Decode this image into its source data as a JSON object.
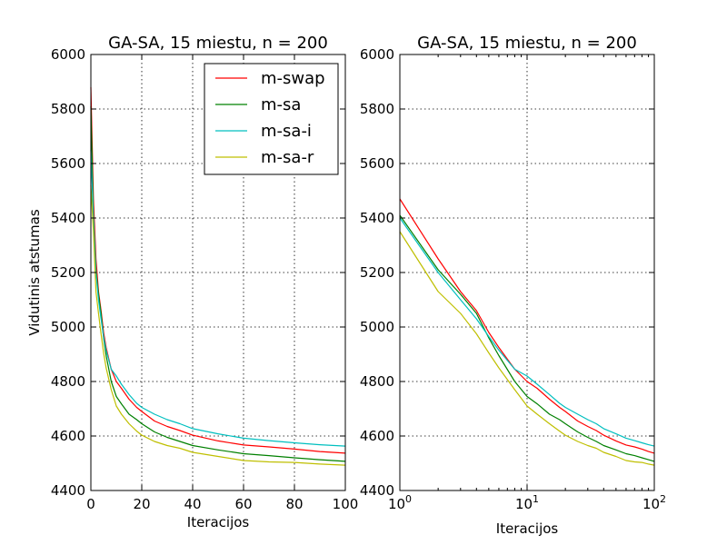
{
  "chart_data": [
    {
      "type": "line",
      "title": "GA-SA, 15 miestu, n = 200",
      "xlabel": "Iteracijos",
      "ylabel": "Vidutinis atstumas",
      "xscale": "linear",
      "xlim": [
        0,
        100
      ],
      "ylim": [
        4400,
        6000
      ],
      "xticks": [
        0,
        20,
        40,
        60,
        80,
        100
      ],
      "xtick_labels": [
        "0",
        "20",
        "40",
        "60",
        "80",
        "100"
      ],
      "yticks": [
        4400,
        4600,
        4800,
        5000,
        5200,
        5400,
        5600,
        5800,
        6000
      ],
      "ytick_labels": [
        "4400",
        "4600",
        "4800",
        "5000",
        "5200",
        "5400",
        "5600",
        "5800",
        "6000"
      ],
      "grid": true,
      "legend": "top-right",
      "series": [
        {
          "name": "m-swap",
          "color": "#ff0000",
          "x": [
            0,
            1,
            2,
            3,
            4,
            5,
            6,
            8,
            10,
            12,
            15,
            18,
            20,
            25,
            30,
            35,
            40,
            50,
            60,
            70,
            80,
            90,
            100
          ],
          "y": [
            5880,
            5470,
            5250,
            5130,
            5060,
            4980,
            4925,
            4845,
            4800,
            4775,
            4735,
            4705,
            4690,
            4655,
            4635,
            4620,
            4603,
            4582,
            4567,
            4560,
            4552,
            4543,
            4537
          ]
        },
        {
          "name": "m-sa",
          "color": "#008000",
          "x": [
            0,
            1,
            2,
            3,
            4,
            5,
            6,
            8,
            10,
            12,
            15,
            18,
            20,
            25,
            30,
            35,
            40,
            50,
            60,
            70,
            80,
            90,
            100
          ],
          "y": [
            5810,
            5410,
            5210,
            5120,
            5050,
            4960,
            4895,
            4800,
            4745,
            4718,
            4680,
            4660,
            4645,
            4615,
            4595,
            4580,
            4565,
            4549,
            4535,
            4528,
            4520,
            4513,
            4507
          ]
        },
        {
          "name": "m-sa-i",
          "color": "#00bfbf",
          "x": [
            0,
            1,
            2,
            3,
            4,
            5,
            6,
            8,
            10,
            12,
            15,
            18,
            20,
            25,
            30,
            35,
            40,
            50,
            60,
            70,
            80,
            90,
            100
          ],
          "y": [
            5650,
            5400,
            5200,
            5100,
            5030,
            4965,
            4915,
            4845,
            4820,
            4790,
            4752,
            4720,
            4705,
            4680,
            4660,
            4645,
            4627,
            4608,
            4592,
            4583,
            4575,
            4568,
            4563
          ]
        },
        {
          "name": "m-sa-r",
          "color": "#bfbf00",
          "x": [
            0,
            1,
            2,
            3,
            4,
            5,
            6,
            8,
            10,
            12,
            15,
            18,
            20,
            25,
            30,
            35,
            40,
            50,
            60,
            70,
            80,
            90,
            100
          ],
          "y": [
            5520,
            5350,
            5130,
            5050,
            4975,
            4905,
            4850,
            4770,
            4710,
            4680,
            4645,
            4618,
            4603,
            4580,
            4565,
            4555,
            4540,
            4525,
            4510,
            4505,
            4503,
            4497,
            4493
          ]
        }
      ]
    },
    {
      "type": "line",
      "title": "GA-SA, 15 miestu, n = 200",
      "xlabel": "Iteracijos",
      "ylabel": "",
      "xscale": "log",
      "xlim": [
        1,
        100
      ],
      "ylim": [
        4400,
        6000
      ],
      "xticks": [
        1,
        10,
        100
      ],
      "xtick_labels": [
        {
          "base": "10",
          "exp": "0"
        },
        {
          "base": "10",
          "exp": "1"
        },
        {
          "base": "10",
          "exp": "2"
        }
      ],
      "yticks": [
        4400,
        4600,
        4800,
        5000,
        5200,
        5400,
        5600,
        5800,
        6000
      ],
      "ytick_labels": [
        "4400",
        "4600",
        "4800",
        "5000",
        "5200",
        "5400",
        "5600",
        "5800",
        "6000"
      ],
      "grid": true,
      "legend": "none",
      "series": [
        {
          "name": "m-swap",
          "color": "#ff0000",
          "x": [
            1,
            2,
            3,
            4,
            5,
            6,
            8,
            10,
            12,
            15,
            18,
            20,
            25,
            30,
            35,
            40,
            50,
            60,
            70,
            80,
            90,
            100
          ],
          "y": [
            5470,
            5250,
            5130,
            5060,
            4980,
            4925,
            4845,
            4800,
            4775,
            4735,
            4705,
            4690,
            4655,
            4635,
            4620,
            4603,
            4582,
            4567,
            4560,
            4552,
            4543,
            4537
          ]
        },
        {
          "name": "m-sa",
          "color": "#008000",
          "x": [
            1,
            2,
            3,
            4,
            5,
            6,
            8,
            10,
            12,
            15,
            18,
            20,
            25,
            30,
            35,
            40,
            50,
            60,
            70,
            80,
            90,
            100
          ],
          "y": [
            5410,
            5210,
            5120,
            5050,
            4960,
            4895,
            4800,
            4745,
            4718,
            4680,
            4660,
            4645,
            4615,
            4595,
            4580,
            4565,
            4549,
            4535,
            4528,
            4520,
            4513,
            4507
          ]
        },
        {
          "name": "m-sa-i",
          "color": "#00bfbf",
          "x": [
            1,
            2,
            3,
            4,
            5,
            6,
            8,
            10,
            12,
            15,
            18,
            20,
            25,
            30,
            35,
            40,
            50,
            60,
            70,
            80,
            90,
            100
          ],
          "y": [
            5400,
            5200,
            5100,
            5030,
            4965,
            4915,
            4845,
            4820,
            4790,
            4752,
            4720,
            4705,
            4680,
            4660,
            4645,
            4627,
            4608,
            4592,
            4583,
            4575,
            4568,
            4563
          ]
        },
        {
          "name": "m-sa-r",
          "color": "#bfbf00",
          "x": [
            1,
            2,
            3,
            4,
            5,
            6,
            8,
            10,
            12,
            15,
            18,
            20,
            25,
            30,
            35,
            40,
            50,
            60,
            70,
            80,
            90,
            100
          ],
          "y": [
            5350,
            5130,
            5050,
            4975,
            4905,
            4850,
            4770,
            4710,
            4680,
            4645,
            4618,
            4603,
            4580,
            4565,
            4555,
            4540,
            4525,
            4510,
            4505,
            4503,
            4497,
            4493
          ]
        }
      ]
    }
  ]
}
